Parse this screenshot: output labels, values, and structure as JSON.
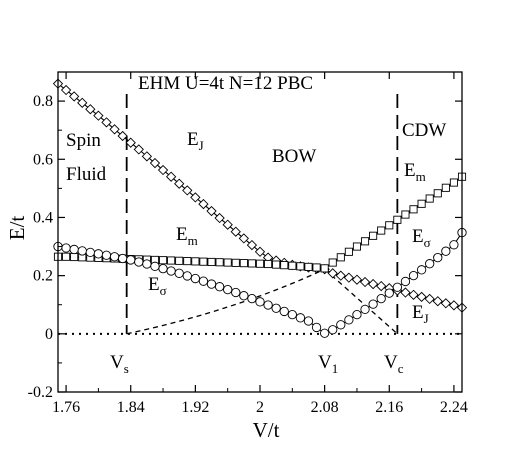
{
  "chart_data": {
    "type": "line",
    "title": "EHM  U=4t   N=12  PBC",
    "xlabel": "V/t",
    "ylabel": "E/t",
    "xlim": [
      1.75,
      2.25
    ],
    "ylim": [
      -0.2,
      0.9
    ],
    "xticks": [
      1.76,
      1.84,
      1.92,
      2.0,
      2.08,
      2.16,
      2.24
    ],
    "xtick_labels": [
      "1.76",
      "1.84",
      "1.92",
      "2",
      "2.08",
      "2.16",
      "2.24"
    ],
    "yticks": [
      -0.2,
      0,
      0.2,
      0.4,
      0.6,
      0.8
    ],
    "ytick_labels": [
      "-0.2",
      "0",
      "0.2",
      "0.4",
      "0.6",
      "0.8"
    ],
    "grid": false,
    "series": [
      {
        "name": "E_J",
        "marker": "diamond",
        "x": [
          1.75,
          1.76,
          1.77,
          1.78,
          1.79,
          1.8,
          1.81,
          1.82,
          1.83,
          1.84,
          1.85,
          1.86,
          1.87,
          1.88,
          1.89,
          1.9,
          1.91,
          1.92,
          1.93,
          1.94,
          1.95,
          1.96,
          1.97,
          1.98,
          1.99,
          2.0,
          2.01,
          2.02,
          2.03,
          2.04,
          2.05,
          2.06,
          2.07,
          2.08,
          2.09,
          2.1,
          2.11,
          2.12,
          2.13,
          2.14,
          2.15,
          2.16,
          2.17,
          2.18,
          2.19,
          2.2,
          2.21,
          2.22,
          2.23,
          2.24,
          2.25
        ],
        "y": [
          0.86,
          0.838,
          0.816,
          0.794,
          0.772,
          0.75,
          0.727,
          0.703,
          0.68,
          0.657,
          0.634,
          0.61,
          0.587,
          0.563,
          0.54,
          0.516,
          0.493,
          0.469,
          0.446,
          0.422,
          0.398,
          0.375,
          0.351,
          0.328,
          0.305,
          0.282,
          0.262,
          0.252,
          0.244,
          0.237,
          0.232,
          0.228,
          0.225,
          0.222,
          0.208,
          0.2,
          0.193,
          0.186,
          0.178,
          0.171,
          0.164,
          0.157,
          0.149,
          0.142,
          0.134,
          0.127,
          0.12,
          0.112,
          0.105,
          0.098,
          0.09
        ]
      },
      {
        "name": "E_m",
        "marker": "square",
        "x": [
          1.75,
          1.76,
          1.77,
          1.78,
          1.79,
          1.8,
          1.81,
          1.82,
          1.83,
          1.84,
          1.85,
          1.86,
          1.87,
          1.88,
          1.89,
          1.9,
          1.91,
          1.92,
          1.93,
          1.94,
          1.95,
          1.96,
          1.97,
          1.98,
          1.99,
          2.0,
          2.01,
          2.02,
          2.03,
          2.04,
          2.05,
          2.06,
          2.07,
          2.08,
          2.09,
          2.1,
          2.11,
          2.12,
          2.13,
          2.14,
          2.15,
          2.16,
          2.17,
          2.18,
          2.19,
          2.2,
          2.21,
          2.22,
          2.23,
          2.24,
          2.25
        ],
        "y": [
          0.265,
          0.265,
          0.264,
          0.263,
          0.262,
          0.261,
          0.26,
          0.259,
          0.258,
          0.257,
          0.256,
          0.255,
          0.254,
          0.253,
          0.252,
          0.251,
          0.25,
          0.249,
          0.248,
          0.247,
          0.246,
          0.245,
          0.244,
          0.243,
          0.242,
          0.241,
          0.24,
          0.238,
          0.236,
          0.234,
          0.232,
          0.23,
          0.228,
          0.225,
          0.245,
          0.263,
          0.282,
          0.3,
          0.318,
          0.337,
          0.355,
          0.373,
          0.392,
          0.41,
          0.428,
          0.447,
          0.465,
          0.483,
          0.502,
          0.52,
          0.54
        ]
      },
      {
        "name": "E_σ",
        "marker": "circle",
        "x": [
          1.75,
          1.76,
          1.77,
          1.78,
          1.79,
          1.8,
          1.81,
          1.82,
          1.83,
          1.84,
          1.85,
          1.86,
          1.87,
          1.88,
          1.89,
          1.9,
          1.91,
          1.92,
          1.93,
          1.94,
          1.95,
          1.96,
          1.97,
          1.98,
          1.99,
          2.0,
          2.01,
          2.02,
          2.03,
          2.04,
          2.05,
          2.06,
          2.07,
          2.08,
          2.09,
          2.1,
          2.11,
          2.12,
          2.13,
          2.14,
          2.15,
          2.16,
          2.17,
          2.18,
          2.19,
          2.2,
          2.21,
          2.22,
          2.23,
          2.24,
          2.25
        ],
        "y": [
          0.3,
          0.295,
          0.29,
          0.285,
          0.28,
          0.275,
          0.27,
          0.265,
          0.259,
          0.254,
          0.247,
          0.24,
          0.232,
          0.224,
          0.216,
          0.208,
          0.199,
          0.19,
          0.181,
          0.171,
          0.162,
          0.152,
          0.142,
          0.131,
          0.121,
          0.11,
          0.099,
          0.088,
          0.077,
          0.066,
          0.055,
          0.044,
          0.022,
          0.002,
          0.014,
          0.031,
          0.048,
          0.066,
          0.084,
          0.102,
          0.121,
          0.14,
          0.16,
          0.18,
          0.2,
          0.22,
          0.241,
          0.262,
          0.284,
          0.306,
          0.348
        ]
      }
    ],
    "dashed_curves": [
      {
        "x": [
          1.835,
          2.08
        ],
        "y": [
          0.0,
          0.222
        ]
      },
      {
        "x": [
          2.08,
          2.17
        ],
        "y": [
          0.222,
          0.0
        ]
      }
    ],
    "vertical_lines": [
      1.835,
      2.17
    ],
    "zero_line": 0.0,
    "annotations": {
      "spin": "Spin",
      "fluid": "Fluid",
      "bow": "BOW",
      "cdw": "CDW",
      "e_j_left": {
        "main": "E",
        "sub": "J"
      },
      "e_m_left": {
        "main": "E",
        "sub": "m"
      },
      "e_sigma_left": {
        "main": "E",
        "sub": "σ"
      },
      "e_m_right": {
        "main": "E",
        "sub": "m"
      },
      "e_sigma_right": {
        "main": "E",
        "sub": "σ"
      },
      "e_j_right": {
        "main": "E",
        "sub": "J"
      },
      "v_s": {
        "main": "V",
        "sub": "s"
      },
      "v_1": {
        "main": "V",
        "sub": "1"
      },
      "v_c": {
        "main": "V",
        "sub": "c"
      }
    }
  }
}
